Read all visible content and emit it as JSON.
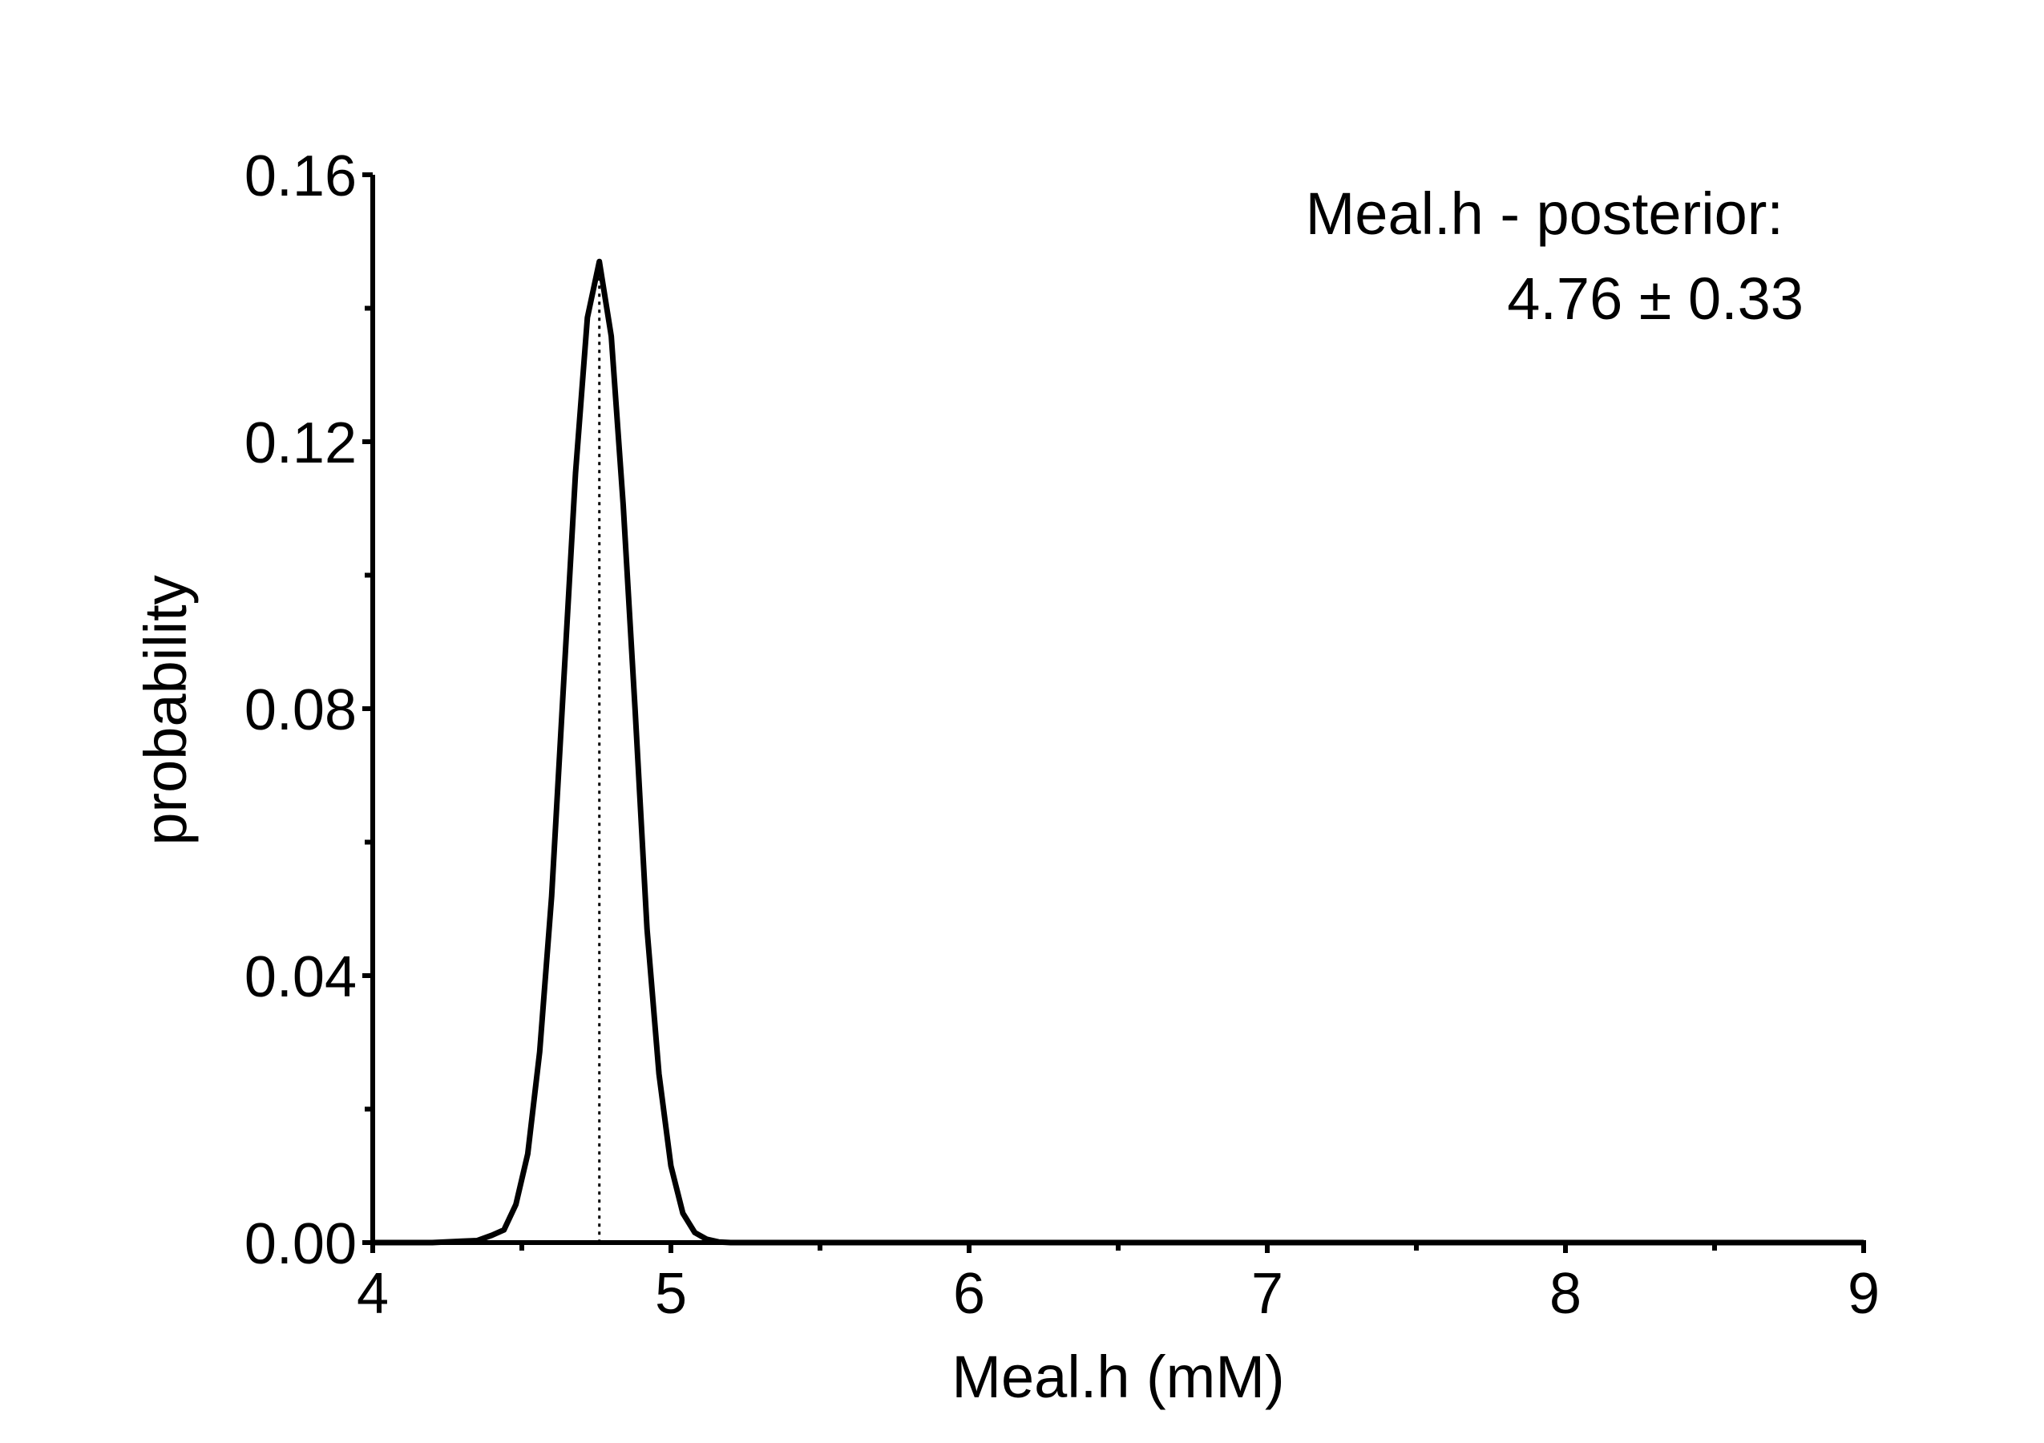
{
  "chart_data": {
    "type": "line",
    "title": "",
    "xlabel": "Meal.h (mM)",
    "ylabel": "probability",
    "xlim": [
      4,
      9
    ],
    "ylim": [
      0,
      0.16
    ],
    "x_ticks": [
      4,
      5,
      6,
      7,
      8,
      9
    ],
    "x_tick_labels": [
      "4",
      "5",
      "6",
      "7",
      "8",
      "9"
    ],
    "x_minor_ticks": [
      4.5,
      5.5,
      6.5,
      7.5,
      8.5
    ],
    "y_ticks": [
      0,
      0.04,
      0.08,
      0.12,
      0.16
    ],
    "y_tick_labels": [
      "0.00",
      "0.04",
      "0.08",
      "0.12",
      "0.16"
    ],
    "y_minor_ticks": [
      0.02,
      0.06,
      0.1,
      0.14
    ],
    "grid": false,
    "annotation": {
      "line1": "Meal.h - posterior:",
      "line2": "4.76 ± 0.33",
      "placement": "top-right"
    },
    "mean_marker": {
      "x": 4.76,
      "y": 0.147,
      "style": "dotted"
    },
    "series": [
      {
        "color": "#000000",
        "x": [
          4.0,
          4.2,
          4.3,
          4.35,
          4.4,
          4.44,
          4.48,
          4.52,
          4.56,
          4.6,
          4.64,
          4.68,
          4.72,
          4.76,
          4.8,
          4.84,
          4.88,
          4.92,
          4.96,
          5.0,
          5.04,
          5.08,
          5.12,
          5.16,
          5.2,
          5.3,
          6.0,
          7.0,
          8.0,
          9.0
        ],
        "y": [
          0.0,
          0.0,
          0.0002,
          0.0003,
          0.0011,
          0.0019,
          0.0057,
          0.0133,
          0.0286,
          0.0519,
          0.0837,
          0.1153,
          0.1386,
          0.147,
          0.1358,
          0.1105,
          0.0797,
          0.047,
          0.0253,
          0.0115,
          0.0044,
          0.0015,
          0.0005,
          0.0001,
          0.0,
          0.0,
          0.0,
          0.0,
          0.0,
          0.0
        ]
      }
    ]
  }
}
